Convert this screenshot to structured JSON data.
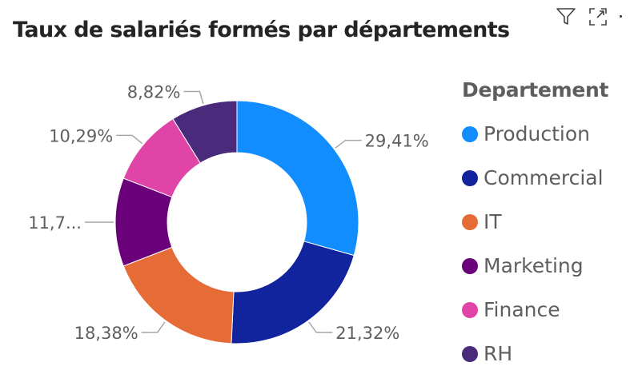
{
  "header": {
    "title": "Taux de salariés formés par départements"
  },
  "toolbar": {
    "icons": [
      "filter-icon",
      "focus-mode-icon",
      "more-options-icon"
    ]
  },
  "legend": {
    "title": "Departement"
  },
  "chart_data": {
    "type": "donut",
    "title": "Taux de salariés formés par départements",
    "legend_title": "Departement",
    "legend_position": "right",
    "slices": [
      {
        "name": "Production",
        "value": 29.41,
        "label": "29,41%",
        "color": "#118dff"
      },
      {
        "name": "Commercial",
        "value": 21.32,
        "label": "21,32%",
        "color": "#12239e"
      },
      {
        "name": "IT",
        "value": 18.38,
        "label": "18,38%",
        "color": "#e66c37"
      },
      {
        "name": "Marketing",
        "value": 11.76,
        "label": "11,7...",
        "color": "#6b007b"
      },
      {
        "name": "Finance",
        "value": 10.29,
        "label": "10,29%",
        "color": "#e044a7"
      },
      {
        "name": "RH",
        "value": 8.82,
        "label": "8,82%",
        "color": "#4a2a7a"
      }
    ]
  }
}
